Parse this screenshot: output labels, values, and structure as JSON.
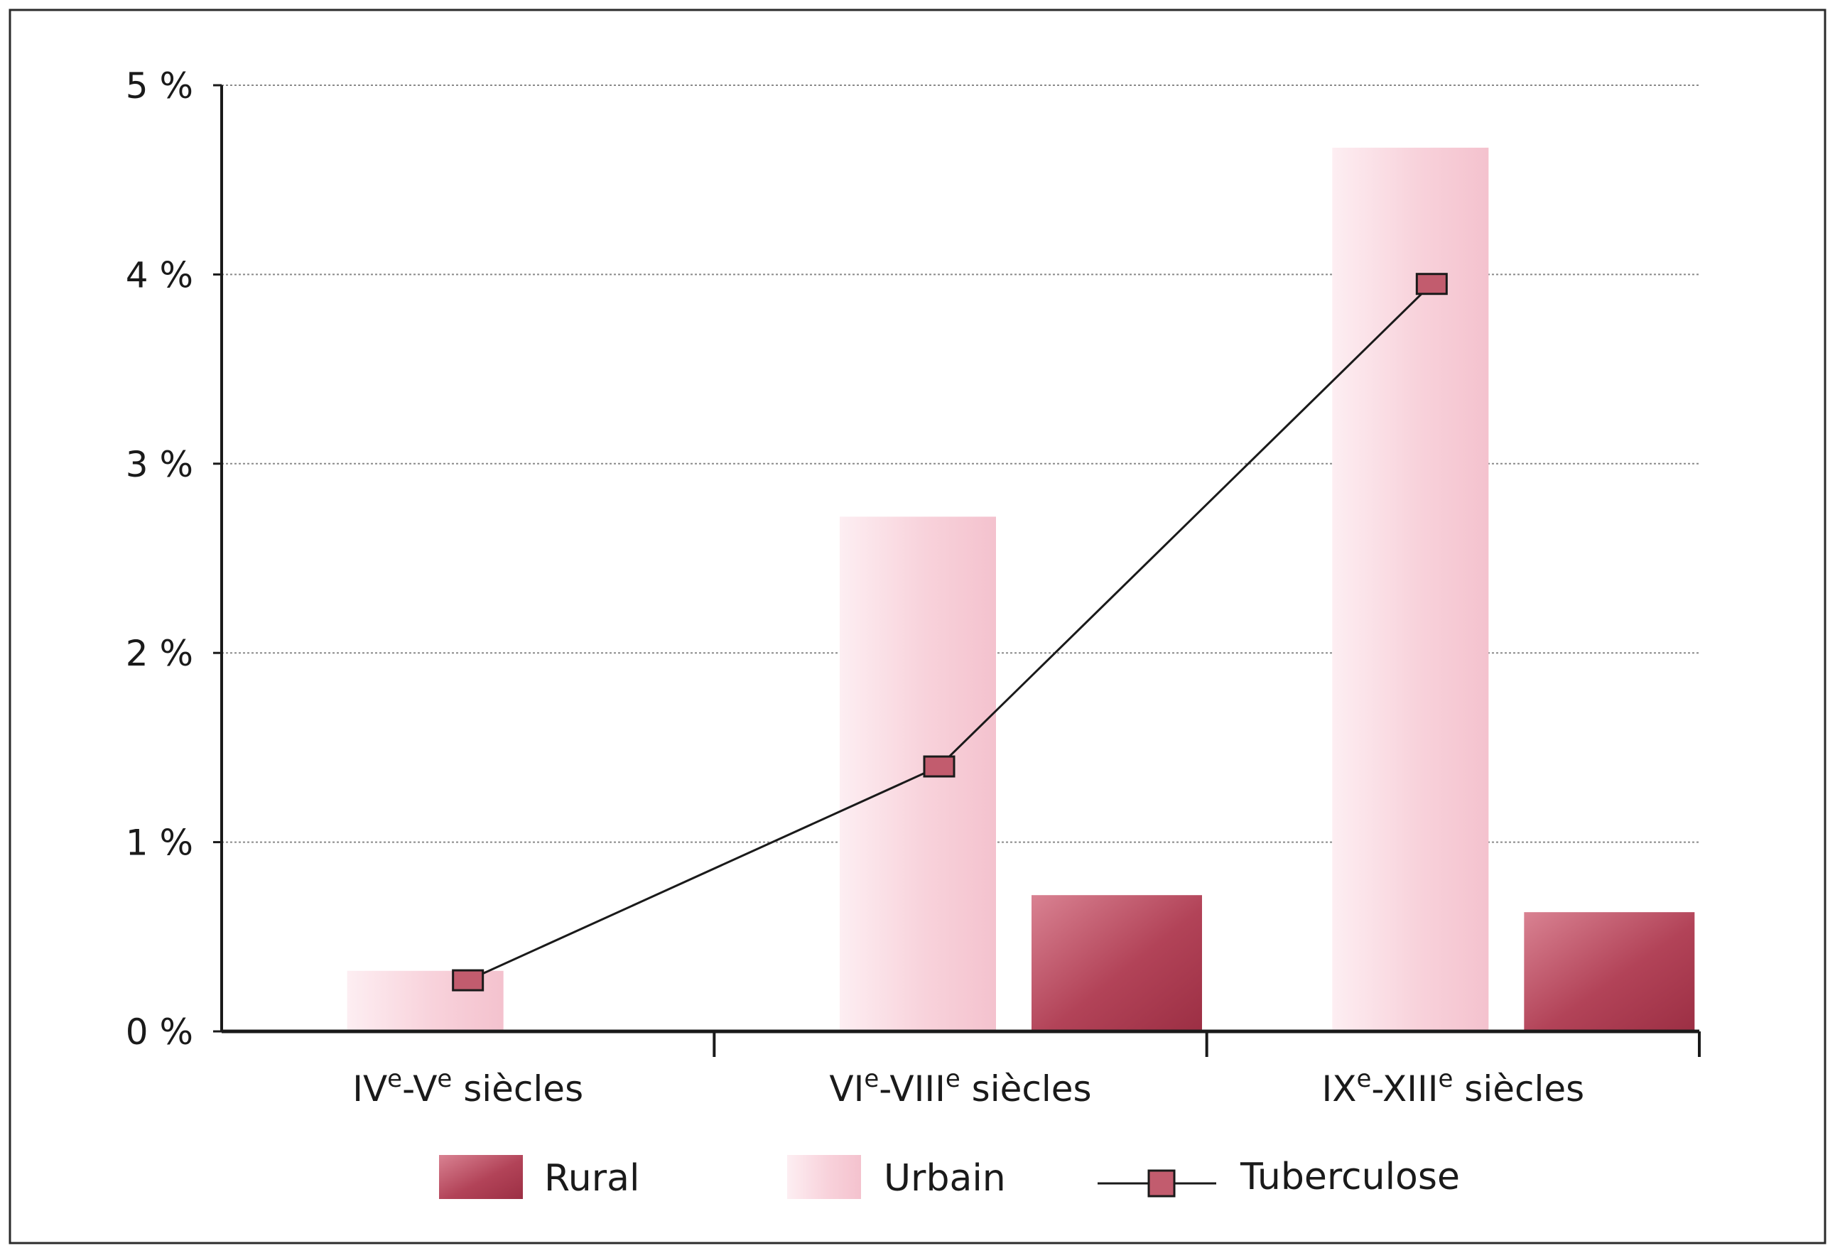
{
  "chart_data": {
    "type": "bar",
    "categories": [
      {
        "base": "IV",
        "sup1": "e",
        "mid": "-V",
        "sup2": "e",
        "tail": " siècles"
      },
      {
        "base": "VI",
        "sup1": "e",
        "mid": "-VIII",
        "sup2": "e",
        "tail": " siècles"
      },
      {
        "base": "IX",
        "sup1": "e",
        "mid": "-XIII",
        "sup2": "e",
        "tail": " siècles"
      }
    ],
    "y_ticks": [
      "0 %",
      "1 %",
      "2 %",
      "3 %",
      "4 %",
      "5 %"
    ],
    "ylim": [
      0,
      5
    ],
    "grid": true,
    "legend_position": "bottom",
    "series": [
      {
        "name": "Rural",
        "kind": "bar",
        "values": [
          null,
          0.72,
          0.63
        ],
        "color": "#a83a4e"
      },
      {
        "name": "Urbain",
        "kind": "bar",
        "values": [
          0.32,
          2.72,
          4.67
        ],
        "color": "#f6cad4"
      },
      {
        "name": "Tuberculose",
        "kind": "line",
        "values": [
          0.27,
          1.4,
          3.95
        ],
        "color": "#1a1a1a",
        "marker_color": "#c25c6e"
      }
    ]
  },
  "legend": {
    "rural": "Rural",
    "urbain": "Urbain",
    "tuberculose": "Tuberculose"
  }
}
